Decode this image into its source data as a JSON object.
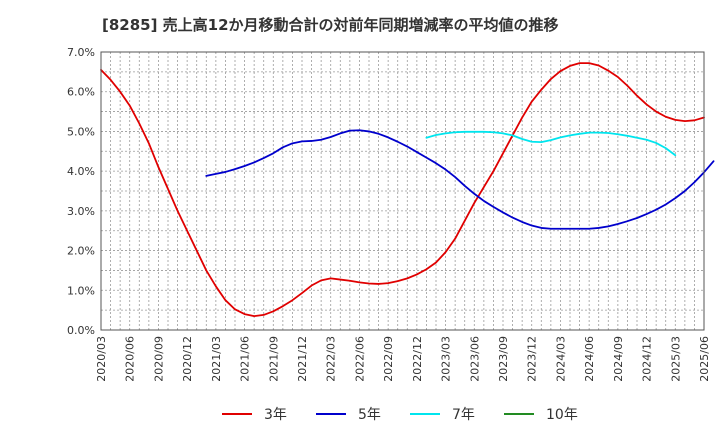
{
  "chart_data": {
    "type": "line",
    "title": "[8285]  売上高12か月移動合計の対前年同期増減率の平均値の推移",
    "xlabel": "",
    "ylabel": "",
    "ylim": [
      0,
      7
    ],
    "y_ticks": [
      "0.0%",
      "1.0%",
      "2.0%",
      "3.0%",
      "4.0%",
      "5.0%",
      "6.0%",
      "7.0%"
    ],
    "x_ticks": [
      "2020/03",
      "2020/06",
      "2020/09",
      "2020/12",
      "2021/03",
      "2021/06",
      "2021/09",
      "2021/12",
      "2022/03",
      "2022/06",
      "2022/09",
      "2022/12",
      "2023/03",
      "2023/06",
      "2023/09",
      "2023/12",
      "2024/03",
      "2024/06",
      "2024/09",
      "2024/12",
      "2025/03",
      "2025/06"
    ],
    "grid": true,
    "legend_position": "bottom",
    "series": [
      {
        "name": "3年",
        "color": "#e00000",
        "start": "2020/03",
        "values": [
          6.55,
          6.3,
          6.0,
          5.65,
          5.2,
          4.7,
          4.1,
          3.55,
          3.0,
          2.5,
          2.0,
          1.5,
          1.1,
          0.75,
          0.52,
          0.4,
          0.35,
          0.38,
          0.47,
          0.6,
          0.75,
          0.93,
          1.12,
          1.25,
          1.3,
          1.27,
          1.24,
          1.2,
          1.17,
          1.16,
          1.18,
          1.23,
          1.3,
          1.4,
          1.53,
          1.7,
          1.96,
          2.3,
          2.75,
          3.2,
          3.6,
          4.0,
          4.45,
          4.9,
          5.35,
          5.75,
          6.05,
          6.32,
          6.52,
          6.65,
          6.72,
          6.72,
          6.66,
          6.53,
          6.37,
          6.15,
          5.9,
          5.68,
          5.5,
          5.37,
          5.29,
          5.26,
          5.28,
          5.35
        ]
      },
      {
        "name": "5年",
        "color": "#0000cc",
        "start": "2021/02",
        "values": [
          3.88,
          3.93,
          3.98,
          4.05,
          4.13,
          4.22,
          4.33,
          4.45,
          4.6,
          4.7,
          4.75,
          4.76,
          4.79,
          4.86,
          4.95,
          5.02,
          5.03,
          5.0,
          4.94,
          4.85,
          4.74,
          4.62,
          4.48,
          4.34,
          4.2,
          4.04,
          3.85,
          3.63,
          3.43,
          3.25,
          3.1,
          2.96,
          2.83,
          2.72,
          2.63,
          2.57,
          2.55,
          2.55,
          2.55,
          2.55,
          2.55,
          2.57,
          2.61,
          2.67,
          2.74,
          2.82,
          2.92,
          3.03,
          3.16,
          3.32,
          3.5,
          3.72,
          3.97,
          4.25
        ]
      },
      {
        "name": "7年",
        "color": "#00e5ee",
        "start": "2023/01",
        "values": [
          4.84,
          4.91,
          4.95,
          4.98,
          4.99,
          4.99,
          4.99,
          4.98,
          4.95,
          4.9,
          4.81,
          4.74,
          4.73,
          4.78,
          4.85,
          4.9,
          4.94,
          4.97,
          4.97,
          4.96,
          4.93,
          4.89,
          4.84,
          4.79,
          4.71,
          4.58,
          4.4
        ]
      },
      {
        "name": "10年",
        "color": "#228b22",
        "start": "2025/03",
        "values": []
      }
    ]
  }
}
